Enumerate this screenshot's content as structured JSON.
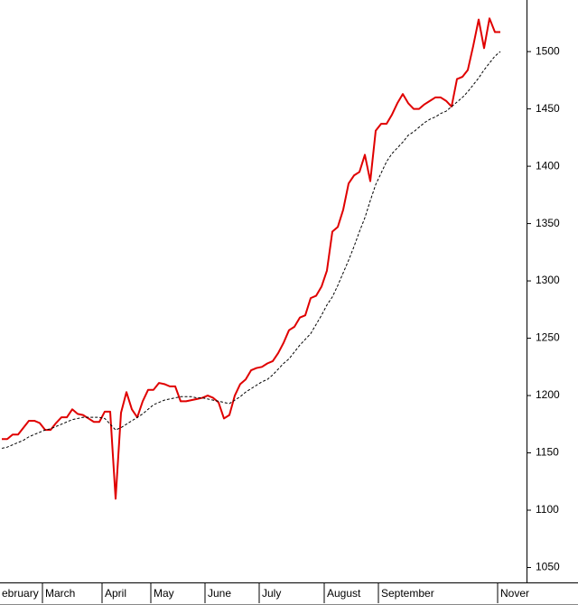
{
  "chart_data": {
    "type": "line",
    "categories": [
      "ebruary",
      null,
      null,
      null,
      null,
      null,
      null,
      null,
      "March",
      null,
      null,
      null,
      null,
      null,
      null,
      null,
      null,
      null,
      null,
      "April",
      null,
      null,
      null,
      null,
      null,
      null,
      null,
      null,
      "May",
      null,
      null,
      null,
      null,
      null,
      null,
      null,
      null,
      null,
      "June",
      null,
      null,
      null,
      null,
      null,
      null,
      null,
      null,
      null,
      "July",
      null,
      null,
      null,
      null,
      null,
      null,
      null,
      null,
      null,
      null,
      null,
      "August",
      null,
      null,
      null,
      null,
      null,
      null,
      null,
      null,
      null,
      "September",
      null,
      null,
      null,
      null,
      null,
      null,
      null,
      null,
      null,
      null,
      null,
      null,
      null,
      null,
      null,
      null,
      null,
      null,
      null,
      null,
      null,
      "Nover"
    ],
    "series": [
      {
        "color": "#e00000",
        "style": "solid",
        "values": [
          1162,
          1162,
          1166,
          1166,
          1172,
          1178,
          1178,
          1176,
          1170,
          1170,
          1176,
          1181,
          1181,
          1188,
          1184,
          1183,
          1180,
          1177,
          1177,
          1186,
          1186,
          1110,
          1185,
          1203,
          1188,
          1181,
          1195,
          1205,
          1205,
          1211,
          1210,
          1208,
          1208,
          1195,
          1195,
          1196,
          1197,
          1198,
          1200,
          1198,
          1194,
          1180,
          1183,
          1200,
          1210,
          1214,
          1222,
          1224,
          1225,
          1228,
          1230,
          1237,
          1246,
          1257,
          1260,
          1268,
          1270,
          1285,
          1287,
          1295,
          1309,
          1343,
          1347,
          1362,
          1385,
          1392,
          1395,
          1410,
          1387,
          1431,
          1437,
          1437,
          1445,
          1455,
          1463,
          1455,
          1450,
          1450,
          1454,
          1457,
          1460,
          1460,
          1457,
          1452,
          1476,
          1478,
          1484,
          1505,
          1528,
          1503,
          1529,
          1517,
          1517
        ]
      },
      {
        "color": "#000000",
        "style": "dashed",
        "values": [
          1154,
          1155,
          1157,
          1159,
          1161,
          1164,
          1166,
          1168,
          1170,
          1171,
          1173,
          1175,
          1177,
          1179,
          1180,
          1181,
          1181,
          1181,
          1181,
          1180,
          1175,
          1170,
          1172,
          1175,
          1178,
          1181,
          1184,
          1188,
          1192,
          1194,
          1196,
          1197,
          1198,
          1199,
          1199,
          1199,
          1198,
          1198,
          1197,
          1196,
          1195,
          1194,
          1193,
          1196,
          1199,
          1203,
          1206,
          1209,
          1212,
          1214,
          1218,
          1223,
          1228,
          1232,
          1238,
          1244,
          1249,
          1254,
          1262,
          1270,
          1279,
          1286,
          1296,
          1307,
          1318,
          1330,
          1343,
          1355,
          1370,
          1384,
          1394,
          1404,
          1411,
          1416,
          1421,
          1427,
          1430,
          1434,
          1438,
          1441,
          1443,
          1446,
          1448,
          1452,
          1456,
          1460,
          1465,
          1471,
          1477,
          1484,
          1490,
          1496,
          1500
        ]
      }
    ],
    "ylim": [
      1037,
      1545
    ],
    "yticks": [
      1050,
      1100,
      1150,
      1200,
      1250,
      1300,
      1350,
      1400,
      1450,
      1500
    ],
    "grid": false
  }
}
